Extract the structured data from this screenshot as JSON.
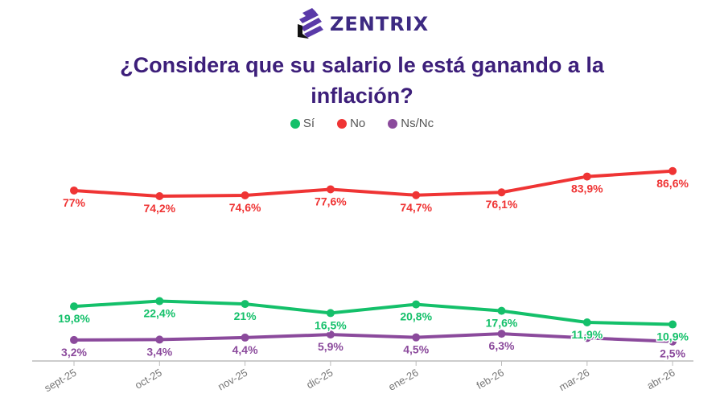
{
  "brand": {
    "name": "ZENTRIX"
  },
  "chart_data": {
    "type": "line",
    "title": "¿Considera que su salario le está ganando a la inflación?",
    "categories": [
      "sept-25",
      "oct-25",
      "nov-25",
      "dic-25",
      "ene-26",
      "feb-26",
      "mar-26",
      "abr-26"
    ],
    "series": [
      {
        "name": "Sí",
        "color": "#14c06a",
        "values": [
          19.8,
          22.4,
          21,
          16.5,
          20.8,
          17.6,
          11.9,
          10.9
        ],
        "labels": [
          "19,8%",
          "22,4%",
          "21%",
          "16,5%",
          "20,8%",
          "17,6%",
          "11,9%",
          "10,9%"
        ]
      },
      {
        "name": "No",
        "color": "#ef3434",
        "values": [
          77,
          74.2,
          74.6,
          77.6,
          74.7,
          76.1,
          83.9,
          86.6
        ],
        "labels": [
          "77%",
          "74,2%",
          "74,6%",
          "77,6%",
          "74,7%",
          "76,1%",
          "83,9%",
          "86,6%"
        ]
      },
      {
        "name": "Ns/Nc",
        "color": "#8b4a9c",
        "values": [
          3.2,
          3.4,
          4.4,
          5.9,
          4.5,
          6.3,
          4.2,
          2.5
        ],
        "labels": [
          "3,2%",
          "3,4%",
          "4,4%",
          "5,9%",
          "4,5%",
          "6,3%",
          "",
          "2,5%"
        ]
      }
    ],
    "legend_position": "top-center",
    "grid": false,
    "ylim": [
      0,
      100
    ]
  }
}
